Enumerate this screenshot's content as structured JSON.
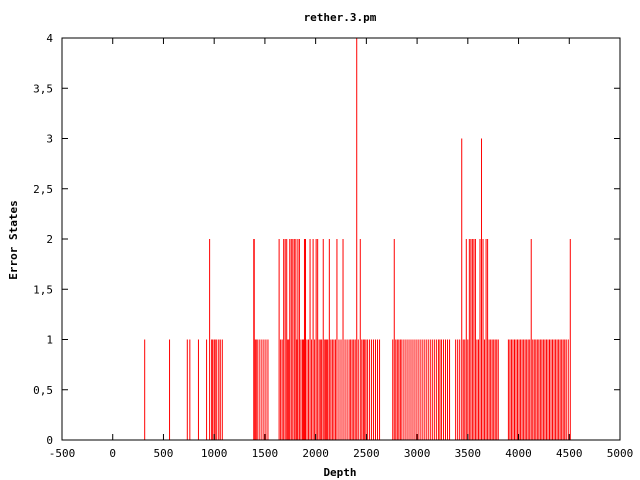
{
  "chart_data": {
    "type": "bar",
    "title": "rether.3.pm",
    "xlabel": "Depth",
    "ylabel": "Error States",
    "xlim": [
      -500,
      5000
    ],
    "ylim": [
      0,
      4
    ],
    "xticks": [
      "-500",
      "0",
      "500",
      "1000",
      "1500",
      "2000",
      "2500",
      "3000",
      "3500",
      "4000",
      "4500",
      "5000"
    ],
    "yticks": [
      "0",
      "0.5",
      "1",
      "1.5",
      "2",
      "2.5",
      "3",
      "3.5",
      "4"
    ],
    "grid": false,
    "bar_color": "#ff0000",
    "series": [
      {
        "x": [
          315,
          560,
          735,
          760,
          845,
          925,
          955,
          975,
          985,
          1000,
          1010,
          1025,
          1045,
          1060,
          1080,
          1390,
          1395,
          1405,
          1415,
          1430,
          1450,
          1470,
          1490,
          1510,
          1530,
          1640,
          1655,
          1670,
          1685,
          1700,
          1715,
          1725,
          1735,
          1745,
          1760,
          1775,
          1790,
          1805,
          1815,
          1825,
          1840,
          1855,
          1870,
          1880,
          1890,
          1900,
          1915,
          1930,
          1945,
          1960,
          1975,
          1990,
          2005,
          2020,
          2035,
          2050,
          2060,
          2075,
          2090,
          2100,
          2110,
          2120,
          2135,
          2150,
          2165,
          2180,
          2195,
          2210,
          2230,
          2250,
          2270,
          2290,
          2310,
          2330,
          2345,
          2360,
          2375,
          2390,
          2405,
          2420,
          2440,
          2455,
          2470,
          2480,
          2495,
          2510,
          2530,
          2550,
          2570,
          2590,
          2610,
          2630,
          2760,
          2775,
          2790,
          2805,
          2820,
          2835,
          2850,
          2870,
          2890,
          2910,
          2930,
          2950,
          2970,
          2990,
          3010,
          3030,
          3050,
          3070,
          3090,
          3110,
          3130,
          3150,
          3170,
          3190,
          3210,
          3225,
          3240,
          3260,
          3280,
          3300,
          3320,
          3380,
          3400,
          3420,
          3440,
          3455,
          3470,
          3485,
          3500,
          3515,
          3530,
          3545,
          3560,
          3575,
          3590,
          3605,
          3620,
          3635,
          3650,
          3665,
          3680,
          3695,
          3710,
          3725,
          3740,
          3755,
          3770,
          3785,
          3800,
          3900,
          3915,
          3930,
          3945,
          3960,
          3975,
          3990,
          4005,
          4020,
          4035,
          4050,
          4065,
          4080,
          4095,
          4110,
          4125,
          4140,
          4155,
          4170,
          4185,
          4200,
          4215,
          4230,
          4245,
          4260,
          4275,
          4290,
          4305,
          4320,
          4335,
          4350,
          4365,
          4380,
          4395,
          4410,
          4425,
          4440,
          4455,
          4470,
          4490,
          4510
        ],
        "values": [
          1,
          1,
          1,
          1,
          1,
          1,
          2,
          1,
          1,
          1,
          1,
          1,
          1,
          1,
          1,
          2,
          2,
          1,
          1,
          1,
          1,
          1,
          1,
          1,
          1,
          2,
          1,
          1,
          2,
          2,
          2,
          1,
          1,
          2,
          2,
          2,
          2,
          2,
          1,
          2,
          2,
          1,
          1,
          1,
          2,
          2,
          1,
          1,
          2,
          1,
          2,
          1,
          2,
          2,
          1,
          1,
          1,
          2,
          1,
          1,
          1,
          1,
          2,
          1,
          1,
          1,
          1,
          2,
          1,
          1,
          2,
          1,
          1,
          1,
          1,
          1,
          1,
          1,
          4,
          1,
          2,
          1,
          1,
          1,
          1,
          1,
          1,
          1,
          1,
          1,
          1,
          1,
          1,
          2,
          1,
          1,
          1,
          1,
          1,
          1,
          1,
          1,
          1,
          1,
          1,
          1,
          1,
          1,
          1,
          1,
          1,
          1,
          1,
          1,
          1,
          1,
          1,
          1,
          1,
          1,
          1,
          1,
          1,
          1,
          1,
          1,
          3,
          1,
          1,
          2,
          1,
          2,
          2,
          2,
          2,
          2,
          1,
          1,
          2,
          3,
          2,
          1,
          2,
          2,
          1,
          1,
          1,
          1,
          1,
          1,
          1,
          1,
          1,
          1,
          1,
          1,
          1,
          1,
          1,
          1,
          1,
          1,
          1,
          1,
          1,
          1,
          2,
          1,
          1,
          1,
          1,
          1,
          1,
          1,
          1,
          1,
          1,
          1,
          1,
          1,
          1,
          1,
          1,
          1,
          1,
          1,
          1,
          1,
          1,
          1,
          1,
          2
        ]
      }
    ]
  }
}
